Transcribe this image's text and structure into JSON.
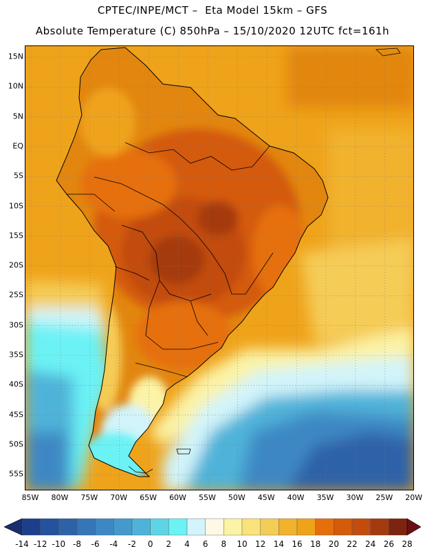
{
  "title_line1": "CPTEC/INPE/MCT –  Eta Model 15km – GFS",
  "title_line2": "Absolute Temperature (C) 850hPa – 15/10/2020 12UTC fct=161h",
  "lat_labels": [
    "15N",
    "10N",
    "5N",
    "EQ",
    "5S",
    "10S",
    "15S",
    "20S",
    "25S",
    "30S",
    "35S",
    "40S",
    "45S",
    "50S",
    "55S"
  ],
  "lon_labels": [
    "85W",
    "80W",
    "75W",
    "70W",
    "65W",
    "60W",
    "55W",
    "50W",
    "45W",
    "40W",
    "35W",
    "30W",
    "25W",
    "20W"
  ],
  "colorbar": {
    "labels": [
      "-14",
      "-12",
      "-10",
      "-8",
      "-6",
      "-4",
      "-2",
      "0",
      "2",
      "4",
      "6",
      "8",
      "10",
      "12",
      "14",
      "16",
      "18",
      "20",
      "22",
      "24",
      "26",
      "28"
    ],
    "colors": [
      "#1c3f8c",
      "#24529c",
      "#2d62a8",
      "#3576b8",
      "#3d88c4",
      "#4599cc",
      "#4fb3d9",
      "#5dd5e6",
      "#6cf2f5",
      "#d2f4fa",
      "#fef8e4",
      "#fbf3a6",
      "#f9e37a",
      "#f5cc56",
      "#f1b22e",
      "#efa31a",
      "#e66f0c",
      "#d45a0c",
      "#c24b0e",
      "#a53a10",
      "#7d2410"
    ],
    "left_arrow_color": "#1a2e6e",
    "right_arrow_color": "#6b0f14"
  }
}
